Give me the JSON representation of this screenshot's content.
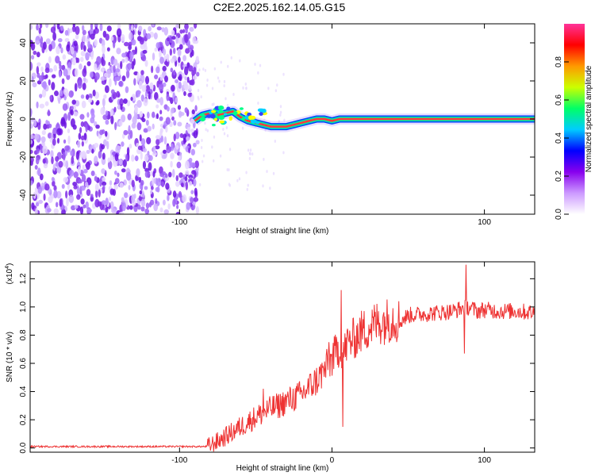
{
  "title": "C2E2.2025.162.14.05.G15",
  "chart_data": [
    {
      "type": "heatmap",
      "title": "C2E2.2025.162.14.05.G15",
      "xlabel": "Height of straight line (km)",
      "ylabel": "Frequency (Hz)",
      "xlim": [
        -198,
        133
      ],
      "ylim": [
        -50,
        50
      ],
      "x_ticks": [
        -100,
        0,
        100
      ],
      "x_tick_labels": [
        "-100",
        "",
        "100"
      ],
      "y_ticks": [
        40,
        20,
        0,
        -20,
        -40
      ],
      "y_tick_labels": [
        "40",
        "20",
        "0",
        "-20",
        "-40"
      ],
      "noise_region_x": [
        -198,
        -88
      ],
      "signal_trace": {
        "x": [
          -90,
          -85,
          -80,
          -75,
          -70,
          -65,
          -60,
          -55,
          -50,
          -45,
          -40,
          -35,
          -30,
          -25,
          -20,
          -15,
          -10,
          -5,
          0,
          5,
          10,
          20,
          40,
          60,
          80,
          100,
          120,
          133
        ],
        "y": [
          -1,
          2,
          3,
          2,
          3,
          4,
          1,
          -1,
          -2,
          -3,
          -4,
          -4,
          -4,
          -3,
          -2,
          -1,
          0,
          0,
          -1,
          0,
          0,
          0,
          0,
          0,
          0,
          0,
          0,
          0
        ]
      },
      "colorbar": {
        "label": "Normalized spectral amplitude",
        "range": [
          0.0,
          1.0
        ],
        "ticks": [
          0.0,
          0.2,
          0.4,
          0.6,
          0.8
        ],
        "tick_labels": [
          "0.0",
          "0.2",
          "0.4",
          "0.6",
          "0.8"
        ],
        "colors": [
          "#ffffff",
          "#cc99ff",
          "#8800ee",
          "#0000ff",
          "#00ccff",
          "#00ff66",
          "#ccff00",
          "#ff9900",
          "#ff0000",
          "#ff3399"
        ]
      },
      "grid": false
    },
    {
      "type": "line",
      "xlabel": "Height of straight line (km)",
      "ylabel": "SNR (10 * v/v)",
      "multiplier": "(x10",
      "multiplier_exp": "4",
      "multiplier_close": ")",
      "xlim": [
        -198,
        133
      ],
      "ylim": [
        -0.03,
        1.32
      ],
      "x_ticks": [
        -100,
        0,
        100
      ],
      "x_tick_labels": [
        "-100",
        "0",
        "100"
      ],
      "y_ticks": [
        0.0,
        0.2,
        0.4,
        0.6,
        0.8,
        1.0,
        1.2
      ],
      "y_tick_labels": [
        "0.0",
        "0.2",
        "0.4",
        "0.6",
        "0.8",
        "1.0",
        "1.2"
      ],
      "color": "#ee3333",
      "series": [
        {
          "x": [
            -198,
            -180,
            -160,
            -140,
            -120,
            -100,
            -90,
            -82,
            -78,
            -70,
            -60,
            -50,
            -40,
            -35,
            -30,
            -20,
            -15,
            -10,
            -5,
            0,
            5,
            8,
            10,
            15,
            20,
            25,
            30,
            35,
            40,
            45,
            50,
            60,
            70,
            80,
            85,
            90,
            95,
            100,
            110,
            120,
            133
          ],
          "values": [
            0.01,
            0.01,
            0.01,
            0.01,
            0.01,
            0.01,
            0.01,
            0.01,
            0.03,
            0.08,
            0.15,
            0.22,
            0.28,
            0.3,
            0.33,
            0.38,
            0.43,
            0.48,
            0.55,
            0.63,
            0.72,
            0.68,
            0.74,
            0.78,
            0.83,
            0.86,
            0.89,
            0.9,
            0.92,
            0.9,
            0.94,
            0.95,
            0.96,
            0.97,
            0.99,
            1.0,
            0.97,
            0.98,
            0.97,
            0.97,
            0.96
          ]
        }
      ],
      "spikes": [
        {
          "x": 6,
          "value": 1.12
        },
        {
          "x": 7,
          "value": 0.15
        },
        {
          "x": -45,
          "value": 0.42
        },
        {
          "x": -2,
          "value": 0.75
        },
        {
          "x": 88,
          "value": 1.3
        },
        {
          "x": 87,
          "value": 0.67
        }
      ],
      "grid": false
    }
  ]
}
